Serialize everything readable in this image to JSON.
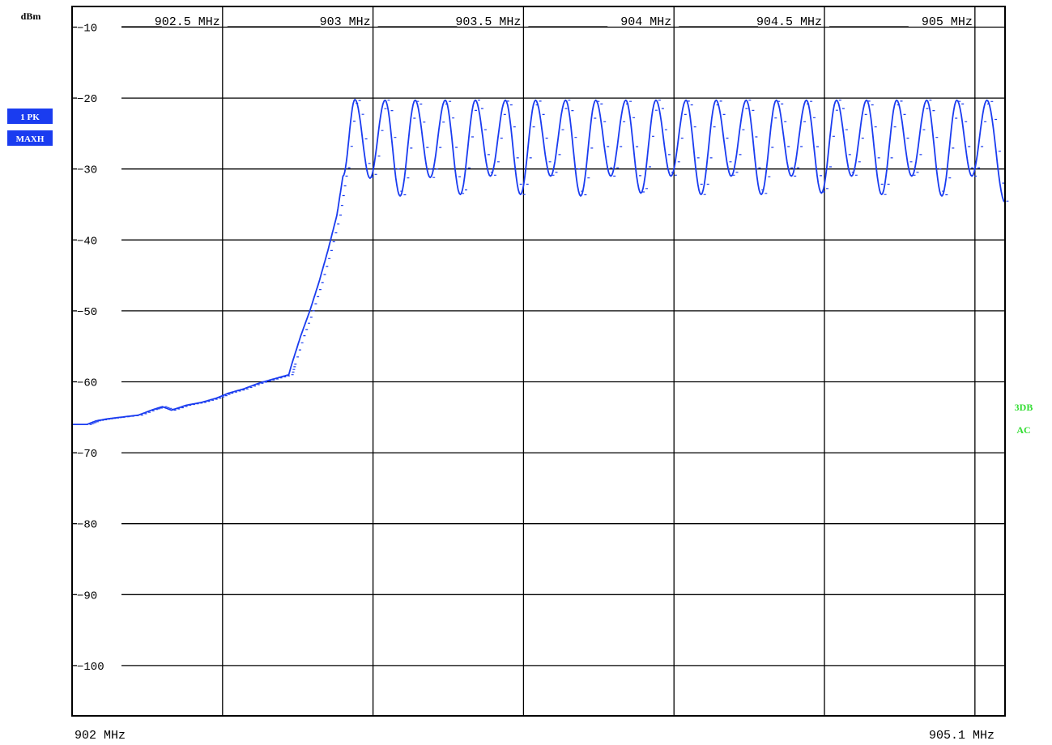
{
  "chart_data": {
    "type": "line",
    "unit_label": "dBm",
    "trace_badges": [
      "1 PK",
      "MAXH"
    ],
    "side_labels": [
      "3DB",
      "AC"
    ],
    "colors": {
      "trace": "#1a3cf0",
      "badge": "#1a3cf0",
      "side_label": "#33dd33",
      "grid": "#000000"
    },
    "x_axis": {
      "min": 902.0,
      "max": 905.1,
      "start_label": "902 MHz",
      "stop_label": "905.1 MHz",
      "top_markers": [
        {
          "value": 902.5,
          "label": "902.5 MHz"
        },
        {
          "value": 903.0,
          "label": "903 MHz"
        },
        {
          "value": 903.5,
          "label": "903.5 MHz"
        },
        {
          "value": 904.0,
          "label": "904 MHz"
        },
        {
          "value": 904.5,
          "label": "904.5 MHz"
        },
        {
          "value": 905.0,
          "label": "905 MHz"
        }
      ]
    },
    "y_axis": {
      "min": -110,
      "max": -10,
      "ticks": [
        {
          "value": -10,
          "label": "−10"
        },
        {
          "value": -20,
          "label": "−20"
        },
        {
          "value": -30,
          "label": "−30"
        },
        {
          "value": -40,
          "label": "−40"
        },
        {
          "value": -50,
          "label": "−50"
        },
        {
          "value": -60,
          "label": "−60"
        },
        {
          "value": -70,
          "label": "−70"
        },
        {
          "value": -80,
          "label": "−80"
        },
        {
          "value": -90,
          "label": "−90"
        },
        {
          "value": -100,
          "label": "−100"
        }
      ]
    },
    "grid": true,
    "series": [
      {
        "ramp": [
          [
            902.0,
            -66.0
          ],
          [
            902.05,
            -66.0
          ],
          [
            902.08,
            -65.5
          ],
          [
            902.12,
            -65.2
          ],
          [
            902.16,
            -65.0
          ],
          [
            902.22,
            -64.7
          ],
          [
            902.27,
            -63.9
          ],
          [
            902.3,
            -63.5
          ],
          [
            902.33,
            -64.0
          ],
          [
            902.38,
            -63.3
          ],
          [
            902.43,
            -62.9
          ],
          [
            902.48,
            -62.3
          ],
          [
            902.52,
            -61.6
          ],
          [
            902.57,
            -61.0
          ],
          [
            902.62,
            -60.2
          ],
          [
            902.67,
            -59.6
          ],
          [
            902.72,
            -59.0
          ],
          [
            902.73,
            -57.5
          ],
          [
            902.76,
            -53.5
          ],
          [
            902.79,
            -50.0
          ],
          [
            902.82,
            -46.0
          ],
          [
            902.85,
            -41.5
          ],
          [
            902.88,
            -36.5
          ],
          [
            902.9,
            -31.0
          ]
        ],
        "peaks": [
          [
            902.94,
            -20.2
          ],
          [
            903.04,
            -20.3
          ],
          [
            903.14,
            -20.3
          ],
          [
            903.24,
            -20.3
          ],
          [
            903.34,
            -20.3
          ],
          [
            903.44,
            -20.3
          ],
          [
            903.54,
            -20.3
          ],
          [
            903.64,
            -20.3
          ],
          [
            903.74,
            -20.3
          ],
          [
            903.84,
            -20.3
          ],
          [
            903.94,
            -20.3
          ],
          [
            904.04,
            -20.3
          ],
          [
            904.14,
            -20.3
          ],
          [
            904.24,
            -20.3
          ],
          [
            904.34,
            -20.3
          ],
          [
            904.44,
            -20.3
          ],
          [
            904.54,
            -20.3
          ],
          [
            904.64,
            -20.3
          ],
          [
            904.74,
            -20.3
          ],
          [
            904.84,
            -20.3
          ],
          [
            904.94,
            -20.3
          ],
          [
            905.04,
            -20.3
          ]
        ],
        "troughs": [
          [
            902.99,
            -31.3
          ],
          [
            903.09,
            -33.8
          ],
          [
            903.19,
            -31.2
          ],
          [
            903.29,
            -33.6
          ],
          [
            903.39,
            -31.0
          ],
          [
            903.49,
            -33.6
          ],
          [
            903.59,
            -31.0
          ],
          [
            903.69,
            -33.8
          ],
          [
            903.79,
            -31.0
          ],
          [
            903.89,
            -33.4
          ],
          [
            903.99,
            -31.0
          ],
          [
            904.09,
            -33.6
          ],
          [
            904.19,
            -31.0
          ],
          [
            904.29,
            -33.6
          ],
          [
            904.39,
            -31.0
          ],
          [
            904.49,
            -33.4
          ],
          [
            904.59,
            -31.0
          ],
          [
            904.69,
            -33.6
          ],
          [
            904.79,
            -31.0
          ],
          [
            904.89,
            -33.8
          ],
          [
            904.99,
            -31.0
          ]
        ],
        "end": [
          905.1,
          -34.7
        ]
      }
    ]
  }
}
